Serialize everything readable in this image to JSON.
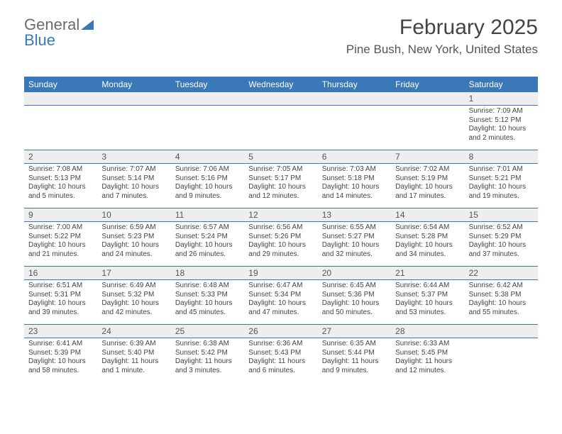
{
  "logo": {
    "text1": "General",
    "text2": "Blue"
  },
  "title": "February 2025",
  "location": "Pine Bush, New York, United States",
  "dayHeaders": [
    "Sunday",
    "Monday",
    "Tuesday",
    "Wednesday",
    "Thursday",
    "Friday",
    "Saturday"
  ],
  "colors": {
    "accent": "#3b78b8",
    "stripe": "#eeeeee",
    "text": "#444444",
    "bg": "#ffffff"
  },
  "weeks": [
    {
      "nums": [
        "",
        "",
        "",
        "",
        "",
        "",
        "1"
      ],
      "cells": [
        null,
        null,
        null,
        null,
        null,
        null,
        {
          "sunrise": "Sunrise: 7:09 AM",
          "sunset": "Sunset: 5:12 PM",
          "d1": "Daylight: 10 hours",
          "d2": "and 2 minutes."
        }
      ]
    },
    {
      "nums": [
        "2",
        "3",
        "4",
        "5",
        "6",
        "7",
        "8"
      ],
      "cells": [
        {
          "sunrise": "Sunrise: 7:08 AM",
          "sunset": "Sunset: 5:13 PM",
          "d1": "Daylight: 10 hours",
          "d2": "and 5 minutes."
        },
        {
          "sunrise": "Sunrise: 7:07 AM",
          "sunset": "Sunset: 5:14 PM",
          "d1": "Daylight: 10 hours",
          "d2": "and 7 minutes."
        },
        {
          "sunrise": "Sunrise: 7:06 AM",
          "sunset": "Sunset: 5:16 PM",
          "d1": "Daylight: 10 hours",
          "d2": "and 9 minutes."
        },
        {
          "sunrise": "Sunrise: 7:05 AM",
          "sunset": "Sunset: 5:17 PM",
          "d1": "Daylight: 10 hours",
          "d2": "and 12 minutes."
        },
        {
          "sunrise": "Sunrise: 7:03 AM",
          "sunset": "Sunset: 5:18 PM",
          "d1": "Daylight: 10 hours",
          "d2": "and 14 minutes."
        },
        {
          "sunrise": "Sunrise: 7:02 AM",
          "sunset": "Sunset: 5:19 PM",
          "d1": "Daylight: 10 hours",
          "d2": "and 17 minutes."
        },
        {
          "sunrise": "Sunrise: 7:01 AM",
          "sunset": "Sunset: 5:21 PM",
          "d1": "Daylight: 10 hours",
          "d2": "and 19 minutes."
        }
      ]
    },
    {
      "nums": [
        "9",
        "10",
        "11",
        "12",
        "13",
        "14",
        "15"
      ],
      "cells": [
        {
          "sunrise": "Sunrise: 7:00 AM",
          "sunset": "Sunset: 5:22 PM",
          "d1": "Daylight: 10 hours",
          "d2": "and 21 minutes."
        },
        {
          "sunrise": "Sunrise: 6:59 AM",
          "sunset": "Sunset: 5:23 PM",
          "d1": "Daylight: 10 hours",
          "d2": "and 24 minutes."
        },
        {
          "sunrise": "Sunrise: 6:57 AM",
          "sunset": "Sunset: 5:24 PM",
          "d1": "Daylight: 10 hours",
          "d2": "and 26 minutes."
        },
        {
          "sunrise": "Sunrise: 6:56 AM",
          "sunset": "Sunset: 5:26 PM",
          "d1": "Daylight: 10 hours",
          "d2": "and 29 minutes."
        },
        {
          "sunrise": "Sunrise: 6:55 AM",
          "sunset": "Sunset: 5:27 PM",
          "d1": "Daylight: 10 hours",
          "d2": "and 32 minutes."
        },
        {
          "sunrise": "Sunrise: 6:54 AM",
          "sunset": "Sunset: 5:28 PM",
          "d1": "Daylight: 10 hours",
          "d2": "and 34 minutes."
        },
        {
          "sunrise": "Sunrise: 6:52 AM",
          "sunset": "Sunset: 5:29 PM",
          "d1": "Daylight: 10 hours",
          "d2": "and 37 minutes."
        }
      ]
    },
    {
      "nums": [
        "16",
        "17",
        "18",
        "19",
        "20",
        "21",
        "22"
      ],
      "cells": [
        {
          "sunrise": "Sunrise: 6:51 AM",
          "sunset": "Sunset: 5:31 PM",
          "d1": "Daylight: 10 hours",
          "d2": "and 39 minutes."
        },
        {
          "sunrise": "Sunrise: 6:49 AM",
          "sunset": "Sunset: 5:32 PM",
          "d1": "Daylight: 10 hours",
          "d2": "and 42 minutes."
        },
        {
          "sunrise": "Sunrise: 6:48 AM",
          "sunset": "Sunset: 5:33 PM",
          "d1": "Daylight: 10 hours",
          "d2": "and 45 minutes."
        },
        {
          "sunrise": "Sunrise: 6:47 AM",
          "sunset": "Sunset: 5:34 PM",
          "d1": "Daylight: 10 hours",
          "d2": "and 47 minutes."
        },
        {
          "sunrise": "Sunrise: 6:45 AM",
          "sunset": "Sunset: 5:36 PM",
          "d1": "Daylight: 10 hours",
          "d2": "and 50 minutes."
        },
        {
          "sunrise": "Sunrise: 6:44 AM",
          "sunset": "Sunset: 5:37 PM",
          "d1": "Daylight: 10 hours",
          "d2": "and 53 minutes."
        },
        {
          "sunrise": "Sunrise: 6:42 AM",
          "sunset": "Sunset: 5:38 PM",
          "d1": "Daylight: 10 hours",
          "d2": "and 55 minutes."
        }
      ]
    },
    {
      "nums": [
        "23",
        "24",
        "25",
        "26",
        "27",
        "28",
        ""
      ],
      "cells": [
        {
          "sunrise": "Sunrise: 6:41 AM",
          "sunset": "Sunset: 5:39 PM",
          "d1": "Daylight: 10 hours",
          "d2": "and 58 minutes."
        },
        {
          "sunrise": "Sunrise: 6:39 AM",
          "sunset": "Sunset: 5:40 PM",
          "d1": "Daylight: 11 hours",
          "d2": "and 1 minute."
        },
        {
          "sunrise": "Sunrise: 6:38 AM",
          "sunset": "Sunset: 5:42 PM",
          "d1": "Daylight: 11 hours",
          "d2": "and 3 minutes."
        },
        {
          "sunrise": "Sunrise: 6:36 AM",
          "sunset": "Sunset: 5:43 PM",
          "d1": "Daylight: 11 hours",
          "d2": "and 6 minutes."
        },
        {
          "sunrise": "Sunrise: 6:35 AM",
          "sunset": "Sunset: 5:44 PM",
          "d1": "Daylight: 11 hours",
          "d2": "and 9 minutes."
        },
        {
          "sunrise": "Sunrise: 6:33 AM",
          "sunset": "Sunset: 5:45 PM",
          "d1": "Daylight: 11 hours",
          "d2": "and 12 minutes."
        },
        null
      ]
    }
  ]
}
